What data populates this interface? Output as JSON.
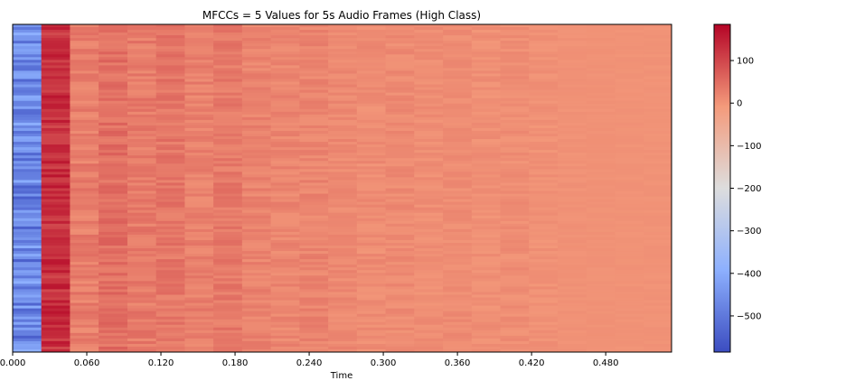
{
  "chart_data": {
    "type": "heatmap",
    "title": "MFCCs = 5 Values for 5s Audio Frames (High Class)",
    "xlabel": "Time",
    "ylabel": "",
    "xlim": [
      0,
      0.5333
    ],
    "x_ticks": [
      "0.000",
      "0.060",
      "0.120",
      "0.180",
      "0.240",
      "0.300",
      "0.360",
      "0.420",
      "0.480"
    ],
    "x_tick_values": [
      0,
      0.06,
      0.12,
      0.18,
      0.24,
      0.3,
      0.36,
      0.42,
      0.48
    ],
    "columns": [
      {
        "t_start": 0.0,
        "t_end": 0.0232,
        "mean": -470,
        "spread": 80
      },
      {
        "t_start": 0.0232,
        "t_end": 0.0464,
        "mean": 130,
        "spread": 35
      },
      {
        "t_start": 0.0464,
        "t_end": 0.0696,
        "mean": 28,
        "spread": 22
      },
      {
        "t_start": 0.0696,
        "t_end": 0.0929,
        "mean": 48,
        "spread": 22
      },
      {
        "t_start": 0.0929,
        "t_end": 0.1161,
        "mean": 32,
        "spread": 20
      },
      {
        "t_start": 0.1161,
        "t_end": 0.1393,
        "mean": 38,
        "spread": 20
      },
      {
        "t_start": 0.1393,
        "t_end": 0.1625,
        "mean": 26,
        "spread": 18
      },
      {
        "t_start": 0.1625,
        "t_end": 0.1857,
        "mean": 34,
        "spread": 18
      },
      {
        "t_start": 0.1857,
        "t_end": 0.2089,
        "mean": 22,
        "spread": 16
      },
      {
        "t_start": 0.2089,
        "t_end": 0.2322,
        "mean": 18,
        "spread": 15
      },
      {
        "t_start": 0.2322,
        "t_end": 0.2554,
        "mean": 20,
        "spread": 15
      },
      {
        "t_start": 0.2554,
        "t_end": 0.2786,
        "mean": 14,
        "spread": 12
      },
      {
        "t_start": 0.2786,
        "t_end": 0.3018,
        "mean": 10,
        "spread": 12
      },
      {
        "t_start": 0.3018,
        "t_end": 0.325,
        "mean": 12,
        "spread": 12
      },
      {
        "t_start": 0.325,
        "t_end": 0.3483,
        "mean": 8,
        "spread": 10
      },
      {
        "t_start": 0.3483,
        "t_end": 0.3715,
        "mean": 10,
        "spread": 10
      },
      {
        "t_start": 0.3715,
        "t_end": 0.3947,
        "mean": 6,
        "spread": 10
      },
      {
        "t_start": 0.3947,
        "t_end": 0.4179,
        "mean": 8,
        "spread": 10
      },
      {
        "t_start": 0.4179,
        "t_end": 0.4411,
        "mean": 4,
        "spread": 8
      },
      {
        "t_start": 0.4411,
        "t_end": 0.4644,
        "mean": 3,
        "spread": 4
      },
      {
        "t_start": 0.4644,
        "t_end": 0.4876,
        "mean": 3,
        "spread": 3
      },
      {
        "t_start": 0.4876,
        "t_end": 0.5108,
        "mean": 2,
        "spread": 3
      },
      {
        "t_start": 0.5108,
        "t_end": 0.5333,
        "mean": 2,
        "spread": 3
      }
    ],
    "colorbar": {
      "colormap": "coolwarm",
      "range": [
        -585,
        185
      ],
      "ticks": [
        100,
        0,
        -100,
        -200,
        -300,
        -400,
        -500
      ],
      "tick_labels": [
        "100",
        "0",
        "−100",
        "−200",
        "−300",
        "−400",
        "−500"
      ],
      "colors": [
        "#3b4cc0",
        "#8db0fe",
        "#dddddd",
        "#f49a7b",
        "#b40426"
      ]
    },
    "grid": false,
    "legend": "none"
  }
}
